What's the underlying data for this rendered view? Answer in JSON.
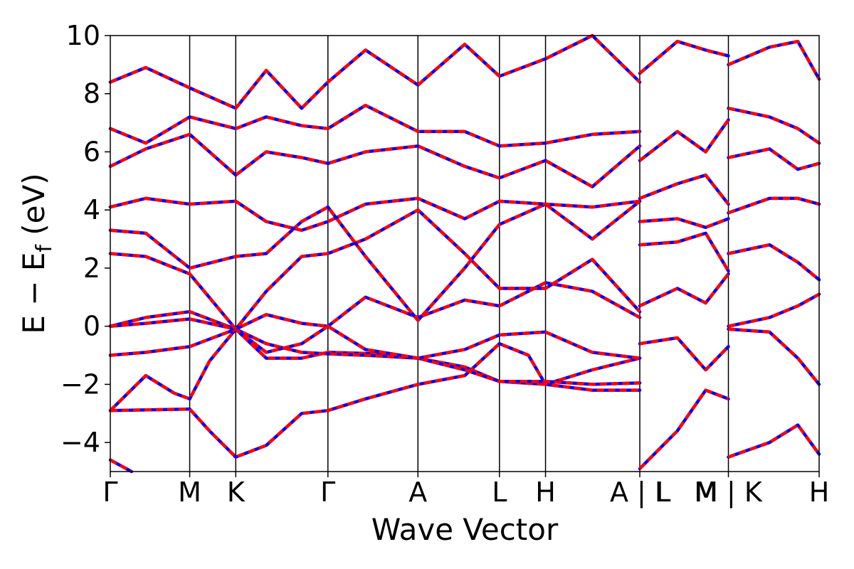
{
  "chart_data": {
    "type": "line",
    "title": "",
    "xlabel": "Wave Vector",
    "ylabel": "E − E",
    "ylabel_subscript": "f",
    "ylabel_unit": " (eV)",
    "ylim": [
      -5,
      10
    ],
    "yticks": [
      -4,
      -2,
      0,
      2,
      4,
      6,
      8,
      10
    ],
    "ytick_labels": [
      "−4",
      "−2",
      "0",
      "2",
      "4",
      "6",
      "8",
      "10"
    ],
    "xlim": [
      0,
      1
    ],
    "path_points": [
      {
        "label": "Γ",
        "x": 0.0
      },
      {
        "label": "M",
        "x": 0.112
      },
      {
        "label": "K",
        "x": 0.177
      },
      {
        "label": "Γ",
        "x": 0.307
      },
      {
        "label": "A",
        "x": 0.434
      },
      {
        "label": "L",
        "x": 0.549
      },
      {
        "label": "H",
        "x": 0.614
      },
      {
        "label": "A | L",
        "x": 0.747
      },
      {
        "label": "M | K",
        "x": 0.872
      },
      {
        "label": "H",
        "x": 1.0
      }
    ],
    "extra_tick_labels": [
      {
        "label": "L",
        "x": 0.78
      },
      {
        "label": "M",
        "x": 0.84
      }
    ],
    "grid": false,
    "series_colors": {
      "reference": "#0000ff",
      "comparison": "#ff0000"
    },
    "series": [
      {
        "values": [
          [
            0,
            -4.6
          ],
          [
            0.03,
            -5.0
          ]
        ]
      },
      {
        "values": [
          [
            0,
            -2.9
          ],
          [
            0.05,
            -1.7
          ],
          [
            0.09,
            -2.3
          ],
          [
            0.112,
            -2.5
          ],
          [
            0.14,
            -1.2
          ],
          [
            0.177,
            -0.1
          ],
          [
            0.22,
            -1.1
          ],
          [
            0.27,
            -1.1
          ],
          [
            0.307,
            -0.9
          ],
          [
            0.38,
            -0.95
          ],
          [
            0.434,
            -1.1
          ],
          [
            0.5,
            -1.4
          ],
          [
            0.549,
            -1.9
          ],
          [
            0.614,
            -2.0
          ],
          [
            0.68,
            -1.5
          ],
          [
            0.747,
            -1.1
          ]
        ]
      },
      {
        "values": [
          [
            0,
            -2.9
          ],
          [
            0.112,
            -2.85
          ],
          [
            0.14,
            -3.6
          ],
          [
            0.177,
            -4.5
          ],
          [
            0.22,
            -4.1
          ],
          [
            0.27,
            -3.0
          ],
          [
            0.307,
            -2.9
          ],
          [
            0.36,
            -2.5
          ],
          [
            0.434,
            -2.0
          ],
          [
            0.5,
            -1.7
          ],
          [
            0.549,
            -0.6
          ],
          [
            0.59,
            -1.0
          ],
          [
            0.614,
            -2.0
          ],
          [
            0.68,
            -2.2
          ],
          [
            0.747,
            -2.2
          ]
        ]
      },
      {
        "values": [
          [
            0,
            -1.0
          ],
          [
            0.05,
            -0.9
          ],
          [
            0.112,
            -0.7
          ],
          [
            0.177,
            -0.1
          ],
          [
            0.22,
            -0.6
          ],
          [
            0.27,
            -0.9
          ],
          [
            0.307,
            -0.95
          ],
          [
            0.36,
            -1.0
          ],
          [
            0.434,
            -1.1
          ],
          [
            0.5,
            -1.5
          ],
          [
            0.549,
            -1.9
          ],
          [
            0.614,
            -1.9
          ],
          [
            0.68,
            -2.0
          ],
          [
            0.747,
            -1.95
          ]
        ]
      },
      {
        "values": [
          [
            0,
            0.0
          ],
          [
            0.05,
            0.3
          ],
          [
            0.112,
            0.5
          ],
          [
            0.177,
            -0.1
          ],
          [
            0.22,
            0.4
          ],
          [
            0.27,
            0.1
          ],
          [
            0.307,
            0.0
          ],
          [
            0.36,
            -0.8
          ],
          [
            0.434,
            -1.1
          ],
          [
            0.5,
            -0.8
          ],
          [
            0.549,
            -0.3
          ],
          [
            0.614,
            -0.2
          ],
          [
            0.68,
            -0.9
          ],
          [
            0.747,
            -1.1
          ]
        ]
      },
      {
        "values": [
          [
            0,
            0.0
          ],
          [
            0.05,
            0.1
          ],
          [
            0.112,
            0.25
          ],
          [
            0.177,
            -0.1
          ],
          [
            0.22,
            -0.9
          ],
          [
            0.27,
            -0.6
          ],
          [
            0.307,
            0.0
          ],
          [
            0.36,
            1.0
          ],
          [
            0.434,
            0.3
          ],
          [
            0.5,
            0.9
          ],
          [
            0.549,
            0.7
          ],
          [
            0.614,
            1.5
          ],
          [
            0.68,
            1.2
          ],
          [
            0.747,
            0.3
          ]
        ]
      },
      {
        "values": [
          [
            0,
            2.5
          ],
          [
            0.05,
            2.4
          ],
          [
            0.112,
            1.8
          ],
          [
            0.177,
            -0.1
          ],
          [
            0.22,
            1.2
          ],
          [
            0.27,
            2.4
          ],
          [
            0.307,
            2.5
          ],
          [
            0.36,
            3.0
          ],
          [
            0.434,
            4.0
          ],
          [
            0.5,
            2.5
          ],
          [
            0.549,
            1.3
          ],
          [
            0.614,
            1.3
          ],
          [
            0.68,
            2.3
          ],
          [
            0.747,
            0.5
          ]
        ]
      },
      {
        "values": [
          [
            0,
            3.3
          ],
          [
            0.05,
            3.2
          ],
          [
            0.112,
            2.0
          ],
          [
            0.177,
            2.4
          ],
          [
            0.22,
            2.5
          ],
          [
            0.27,
            3.6
          ],
          [
            0.307,
            4.1
          ],
          [
            0.36,
            2.4
          ],
          [
            0.434,
            0.2
          ],
          [
            0.5,
            2.0
          ],
          [
            0.549,
            3.5
          ],
          [
            0.614,
            4.2
          ],
          [
            0.68,
            3.0
          ],
          [
            0.747,
            4.3
          ]
        ]
      },
      {
        "values": [
          [
            0,
            4.1
          ],
          [
            0.05,
            4.4
          ],
          [
            0.112,
            4.2
          ],
          [
            0.177,
            4.3
          ],
          [
            0.22,
            3.6
          ],
          [
            0.27,
            3.3
          ],
          [
            0.307,
            3.6
          ],
          [
            0.36,
            4.2
          ],
          [
            0.434,
            4.4
          ],
          [
            0.5,
            3.7
          ],
          [
            0.549,
            4.3
          ],
          [
            0.614,
            4.2
          ],
          [
            0.68,
            4.1
          ],
          [
            0.747,
            4.3
          ]
        ]
      },
      {
        "values": [
          [
            0,
            5.5
          ],
          [
            0.05,
            6.1
          ],
          [
            0.112,
            6.6
          ],
          [
            0.177,
            5.2
          ],
          [
            0.22,
            6.0
          ],
          [
            0.27,
            5.8
          ],
          [
            0.307,
            5.6
          ],
          [
            0.36,
            6.0
          ],
          [
            0.434,
            6.2
          ],
          [
            0.5,
            5.5
          ],
          [
            0.549,
            5.1
          ],
          [
            0.614,
            5.7
          ],
          [
            0.68,
            4.8
          ],
          [
            0.747,
            6.2
          ]
        ]
      },
      {
        "values": [
          [
            0,
            6.8
          ],
          [
            0.05,
            6.3
          ],
          [
            0.112,
            7.2
          ],
          [
            0.177,
            6.8
          ],
          [
            0.22,
            7.2
          ],
          [
            0.27,
            6.9
          ],
          [
            0.307,
            6.8
          ],
          [
            0.36,
            7.6
          ],
          [
            0.434,
            6.7
          ],
          [
            0.5,
            6.7
          ],
          [
            0.549,
            6.2
          ],
          [
            0.614,
            6.3
          ],
          [
            0.68,
            6.6
          ],
          [
            0.747,
            6.7
          ]
        ]
      },
      {
        "values": [
          [
            0,
            8.4
          ],
          [
            0.05,
            8.9
          ],
          [
            0.112,
            8.2
          ],
          [
            0.177,
            7.5
          ],
          [
            0.22,
            8.8
          ],
          [
            0.27,
            7.5
          ],
          [
            0.307,
            8.4
          ],
          [
            0.36,
            9.5
          ],
          [
            0.434,
            8.3
          ],
          [
            0.5,
            9.7
          ],
          [
            0.549,
            8.6
          ],
          [
            0.614,
            9.2
          ],
          [
            0.68,
            10.0
          ],
          [
            0.747,
            8.4
          ]
        ]
      },
      {
        "values": [
          [
            0.747,
            -4.9
          ],
          [
            0.8,
            -3.6
          ],
          [
            0.84,
            -2.2
          ],
          [
            0.872,
            -2.5
          ]
        ]
      },
      {
        "values": [
          [
            0.747,
            -0.6
          ],
          [
            0.8,
            -0.4
          ],
          [
            0.84,
            -1.5
          ],
          [
            0.872,
            -0.7
          ]
        ]
      },
      {
        "values": [
          [
            0.747,
            0.7
          ],
          [
            0.8,
            1.3
          ],
          [
            0.84,
            0.8
          ],
          [
            0.872,
            1.8
          ]
        ]
      },
      {
        "values": [
          [
            0.747,
            2.8
          ],
          [
            0.8,
            2.9
          ],
          [
            0.84,
            3.2
          ],
          [
            0.872,
            1.9
          ]
        ]
      },
      {
        "values": [
          [
            0.747,
            3.6
          ],
          [
            0.8,
            3.7
          ],
          [
            0.84,
            3.4
          ],
          [
            0.872,
            3.7
          ]
        ]
      },
      {
        "values": [
          [
            0.747,
            4.4
          ],
          [
            0.8,
            4.9
          ],
          [
            0.84,
            5.2
          ],
          [
            0.872,
            4.2
          ]
        ]
      },
      {
        "values": [
          [
            0.747,
            5.7
          ],
          [
            0.8,
            6.7
          ],
          [
            0.84,
            6.0
          ],
          [
            0.872,
            7.1
          ]
        ]
      },
      {
        "values": [
          [
            0.747,
            8.7
          ],
          [
            0.8,
            9.8
          ],
          [
            0.84,
            9.5
          ],
          [
            0.872,
            9.3
          ]
        ]
      },
      {
        "values": [
          [
            0.872,
            -4.5
          ],
          [
            0.93,
            -4.0
          ],
          [
            0.97,
            -3.4
          ],
          [
            1.0,
            -4.4
          ]
        ]
      },
      {
        "values": [
          [
            0.872,
            -0.1
          ],
          [
            0.93,
            -0.2
          ],
          [
            0.97,
            -1.1
          ],
          [
            1.0,
            -2.0
          ]
        ]
      },
      {
        "values": [
          [
            0.872,
            0.0
          ],
          [
            0.93,
            0.3
          ],
          [
            0.97,
            0.7
          ],
          [
            1.0,
            1.1
          ]
        ]
      },
      {
        "values": [
          [
            0.872,
            2.5
          ],
          [
            0.93,
            2.8
          ],
          [
            0.97,
            2.2
          ],
          [
            1.0,
            1.6
          ]
        ]
      },
      {
        "values": [
          [
            0.872,
            3.9
          ],
          [
            0.93,
            4.4
          ],
          [
            0.97,
            4.4
          ],
          [
            1.0,
            4.2
          ]
        ]
      },
      {
        "values": [
          [
            0.872,
            5.8
          ],
          [
            0.93,
            6.1
          ],
          [
            0.97,
            5.4
          ],
          [
            1.0,
            5.6
          ]
        ]
      },
      {
        "values": [
          [
            0.872,
            7.5
          ],
          [
            0.93,
            7.2
          ],
          [
            0.97,
            6.8
          ],
          [
            1.0,
            6.3
          ]
        ]
      },
      {
        "values": [
          [
            0.872,
            9.0
          ],
          [
            0.93,
            9.6
          ],
          [
            0.97,
            9.8
          ],
          [
            1.0,
            8.5
          ]
        ]
      }
    ]
  }
}
